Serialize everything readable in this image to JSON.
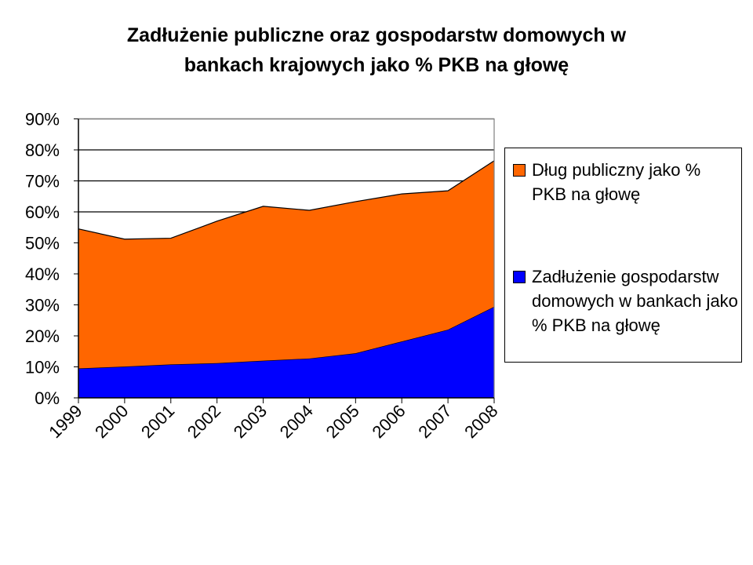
{
  "chart_data": {
    "type": "area",
    "stacked": true,
    "title": "Zadłużenie publiczne oraz gospodarstw domowych w bankach krajowych jako % PKB na głowę",
    "title_lines": [
      "Zadłużenie publiczne oraz gospodarstw domowych w",
      "bankach krajowych jako % PKB na głowę"
    ],
    "xlabel": "",
    "ylabel": "",
    "categories": [
      "1999",
      "2000",
      "2001",
      "2002",
      "2003",
      "2004",
      "2005",
      "2006",
      "2007",
      "2008"
    ],
    "ylim": [
      0,
      90
    ],
    "yticks": [
      "0%",
      "10%",
      "20%",
      "30%",
      "40%",
      "50%",
      "60%",
      "70%",
      "80%",
      "90%"
    ],
    "grid": true,
    "legend_position": "right",
    "series": [
      {
        "name": "Zadłużenie gospodarstw domowych w bankach jako % PKB na głowę",
        "color": "#0000FF",
        "values": [
          9.5,
          10.1,
          10.8,
          11.2,
          12.0,
          12.7,
          14.4,
          18.2,
          22.0,
          29.4
        ]
      },
      {
        "name": "Dług publiczny  jako % PKB na głowę",
        "color": "#FF6600",
        "values": [
          45.0,
          41.1,
          40.7,
          45.8,
          49.8,
          47.8,
          48.9,
          47.6,
          44.8,
          47.1
        ]
      }
    ]
  }
}
